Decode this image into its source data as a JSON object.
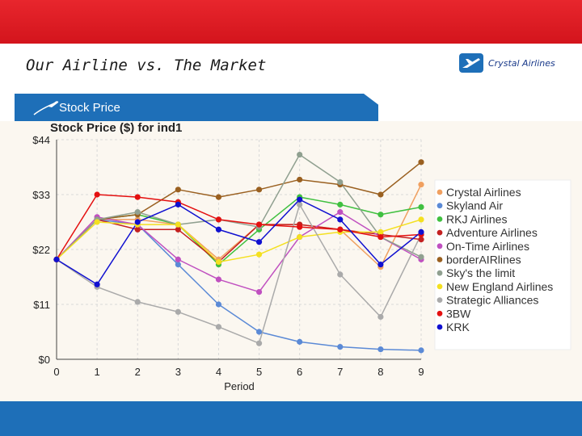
{
  "slide": {
    "title": "Our Airline vs. The Market",
    "brand": "Crystal Airlines",
    "section_label": "Stock Price"
  },
  "chart_data": {
    "type": "line",
    "title": "Stock Price ($) for ind1",
    "xlabel": "Period",
    "ylabel": "",
    "x": [
      0,
      1,
      2,
      3,
      4,
      5,
      6,
      7,
      8,
      9
    ],
    "ylim": [
      0,
      44
    ],
    "y_ticks": [
      {
        "value": 0,
        "label": "$0"
      },
      {
        "value": 11,
        "label": "$11"
      },
      {
        "value": 22,
        "label": "$22"
      },
      {
        "value": 33,
        "label": "$33"
      },
      {
        "value": 44,
        "label": "$44"
      }
    ],
    "grid": true,
    "legend_position": "right",
    "series": [
      {
        "name": "Crystal Airlines",
        "color": "#f0a060",
        "values": [
          20,
          28,
          28,
          27,
          20,
          27,
          27,
          26,
          18.5,
          35
        ]
      },
      {
        "name": "Skyland Air",
        "color": "#5b8ad6",
        "values": [
          20,
          28,
          27,
          19,
          11,
          5.5,
          3.5,
          2.5,
          2,
          1.8
        ]
      },
      {
        "name": "RKJ Airlines",
        "color": "#40c040",
        "values": [
          20,
          28,
          29,
          27,
          19,
          26,
          32.5,
          31,
          29,
          30.5
        ]
      },
      {
        "name": "Adventure Airlines",
        "color": "#c42020",
        "values": [
          20,
          28,
          26,
          26,
          19.5,
          27,
          27,
          26,
          25,
          24
        ]
      },
      {
        "name": "On-Time Airlines",
        "color": "#c050c0",
        "values": [
          20,
          28.5,
          27,
          20,
          16,
          13.5,
          24.5,
          29.5,
          24.5,
          20
        ]
      },
      {
        "name": "borderAIRlines",
        "color": "#9a6020",
        "values": [
          20,
          28,
          29,
          34,
          32.5,
          34,
          36,
          35,
          33,
          39.5
        ]
      },
      {
        "name": "Sky's the limit",
        "color": "#90a090",
        "values": [
          20,
          28,
          29.5,
          27,
          28,
          26.5,
          41,
          35.5,
          24.5,
          20.5
        ]
      },
      {
        "name": "New England Airlines",
        "color": "#f4e020",
        "values": [
          20,
          27.5,
          27,
          27,
          19.5,
          21,
          24.5,
          25.5,
          25.5,
          28
        ]
      },
      {
        "name": "Strategic Alliances",
        "color": "#aaaaaa",
        "values": [
          20,
          14.5,
          11.5,
          9.5,
          6.5,
          3.2,
          31,
          17,
          8.5,
          25
        ]
      },
      {
        "name": "3BW",
        "color": "#e41010",
        "values": [
          20,
          33,
          32.5,
          31.5,
          28,
          27,
          26.5,
          26,
          24.5,
          25
        ]
      },
      {
        "name": "KRK",
        "color": "#1010d0",
        "values": [
          20,
          15,
          27.5,
          31,
          26,
          23.5,
          32,
          28,
          19,
          25.5
        ]
      }
    ]
  }
}
